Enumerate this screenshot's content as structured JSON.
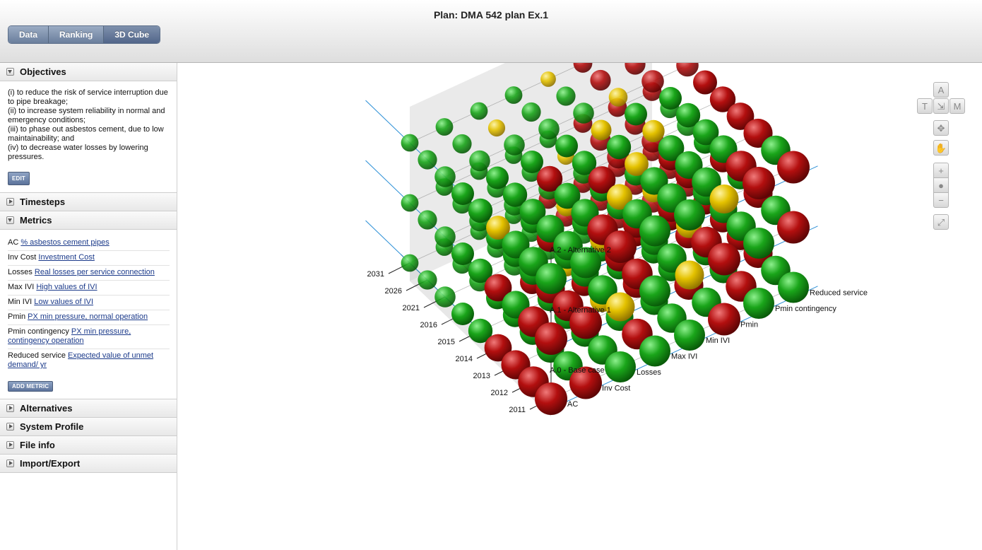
{
  "header": {
    "plan_title": "Plan: DMA 542 plan Ex.1",
    "tabs": [
      {
        "label": "Data"
      },
      {
        "label": "Ranking"
      },
      {
        "label": "3D Cube",
        "active": true
      }
    ]
  },
  "sidebar": {
    "objectives": {
      "title": "Objectives",
      "lines": [
        "(i) to reduce the risk of service interruption due to pipe breakage;",
        "(ii) to increase system reliability in normal and emergency conditions;",
        "(iii) to phase out asbestos cement, due to low maintainability; and",
        "(iv) to decrease water losses by lowering pressures."
      ],
      "edit_label": "EDIT"
    },
    "timesteps": {
      "title": "Timesteps"
    },
    "metrics": {
      "title": "Metrics",
      "items": [
        {
          "code": "AC",
          "link": "% asbestos cement pipes"
        },
        {
          "code": "Inv Cost",
          "link": "Investment Cost"
        },
        {
          "code": "Losses",
          "link": "Real losses per service connection"
        },
        {
          "code": "Max IVI",
          "link": "High values of IVI"
        },
        {
          "code": "Min IVI",
          "link": "Low values of IVI"
        },
        {
          "code": "Pmin",
          "link": "PX min pressure, normal operation"
        },
        {
          "code": "Pmin contingency",
          "link": "PX min pressure, contingency operation"
        },
        {
          "code": "Reduced service",
          "link": "Expected value of unmet demand/ yr"
        }
      ],
      "add_label": "ADD METRIC"
    },
    "alternatives": {
      "title": "Alternatives"
    },
    "system_profile": {
      "title": "System Profile"
    },
    "file_info": {
      "title": "File info"
    },
    "import_export": {
      "title": "Import/Export"
    }
  },
  "controls": {
    "icons": [
      "view-a-icon",
      "view-t-icon",
      "view-axes-icon",
      "view-m-icon",
      "pan-icon",
      "hand-icon",
      "zoom-in-icon",
      "globe-icon",
      "zoom-out-icon",
      "fullscreen-icon"
    ],
    "labels": {
      "a": "A",
      "t": "T",
      "m": "M"
    }
  },
  "chart_data": {
    "type": "scatter3d",
    "axes": {
      "timesteps": [
        "2011",
        "2012",
        "2013",
        "2014",
        "2015",
        "2016",
        "2021",
        "2026",
        "2031"
      ],
      "metrics": [
        "AC",
        "Inv Cost",
        "Losses",
        "Max IVI",
        "Min IVI",
        "Pmin",
        "Pmin contingency",
        "Reduced service"
      ],
      "alternatives": [
        "A.0 - Base case",
        "A.1 - Alternative 1",
        "A.2 - Alternative 2"
      ]
    },
    "colors": {
      "green": "#1aa51a",
      "yellow": "#e4c200",
      "red": "#b30f0f"
    },
    "layers": [
      [
        "RRGGGRGG",
        "RGGRGGRG",
        "RGGGGRGR",
        "RGGYRGGR",
        "GGGRGGRR",
        "GGRYGRRR",
        "GGGGGRRR",
        "GGGGRRRR",
        "GGGGRRRR"
      ],
      [
        "RRYGYRGR",
        "RRGRGRGG",
        "GRGRGYGR",
        "RGGYRRGG",
        "GGRGGYRR",
        "GGGYGGRG",
        "GGGGGRRG",
        "GGGGYRRG",
        "GGGGGRRR"
      ],
      [
        "GGRGGYRR",
        "GGRGGGRG",
        "GGGYGGGR",
        "YGGRYGGR",
        "GGRGGYGR",
        "GGGGYGGR",
        "GGGGGYRR",
        "GGYGGRRY",
        "GGGGYRRR"
      ]
    ]
  }
}
